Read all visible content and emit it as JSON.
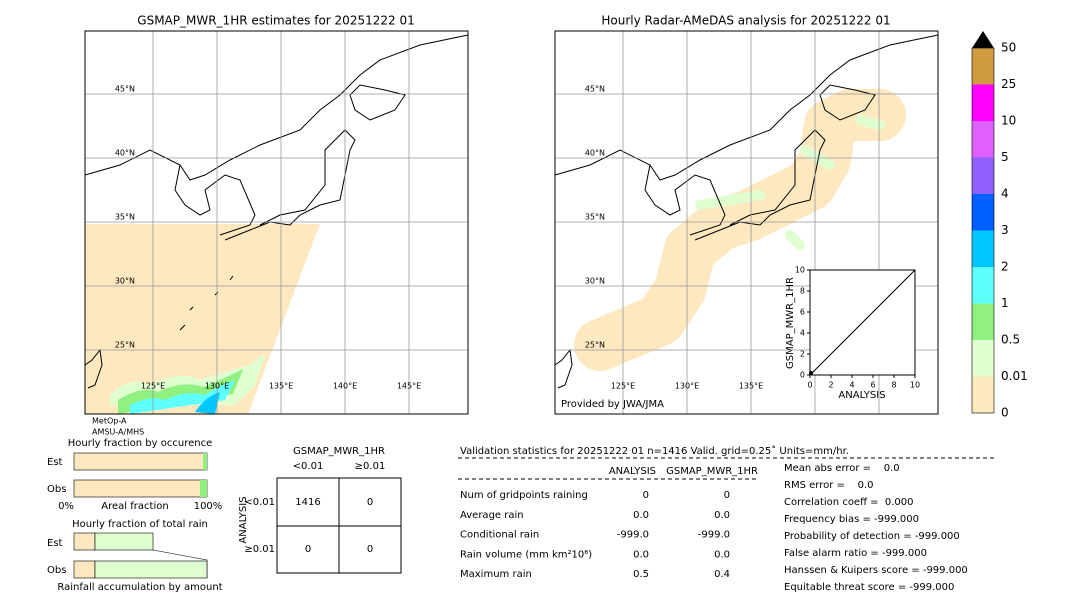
{
  "left_map": {
    "title": "GSMAP_MWR_1HR estimates for 20251222 01",
    "lat_labels": [
      "45°N",
      "40°N",
      "35°N",
      "30°N",
      "25°N"
    ],
    "lon_labels": [
      "125°E",
      "130°E",
      "135°E",
      "140°E",
      "145°E"
    ],
    "satellite": [
      "MetOp-A",
      "AMSU-A/MHS"
    ]
  },
  "right_map": {
    "title": "Hourly Radar-AMeDAS analysis for 20251222 01",
    "lat_labels": [
      "45°N",
      "40°N",
      "35°N",
      "30°N",
      "25°N"
    ],
    "lon_labels": [
      "125°E",
      "130°E",
      "135°E"
    ],
    "credit": "Provided by JWA/JMA"
  },
  "inset": {
    "ylabel": "GSMAP_MWR_1HR",
    "xlabel": "ANALYSIS",
    "xticks": [
      "0",
      "2",
      "4",
      "6",
      "8",
      "10"
    ],
    "yticks": [
      "0",
      "2",
      "4",
      "6",
      "8",
      "10"
    ]
  },
  "colorbar": {
    "labels": [
      "0",
      "0.01",
      "0.5",
      "1",
      "2",
      "3",
      "4",
      "5",
      "10",
      "25",
      "50"
    ]
  },
  "fraction_occurrence": {
    "title": "Hourly fraction by occurence",
    "rows": [
      "Est",
      "Obs"
    ],
    "axis": [
      "0%",
      "Areal fraction",
      "100%"
    ]
  },
  "fraction_rain": {
    "title": "Hourly fraction of total rain",
    "rows": [
      "Est",
      "Obs"
    ],
    "footer": "Rainfall accumulation by amount"
  },
  "contingency": {
    "title": "GSMAP_MWR_1HR",
    "columns": [
      "<0.01",
      "≥0.01"
    ],
    "row_axis": "ANALYSIS",
    "rows": [
      {
        "label": "<0.01",
        "cells": [
          "1416",
          "0"
        ]
      },
      {
        "label": "≥0.01",
        "cells": [
          "0",
          "0"
        ]
      }
    ]
  },
  "validation": {
    "header": "Validation statistics for 20251222 01  n=1416 Valid. grid=0.25˚ Units=mm/hr.",
    "columns": [
      "ANALYSIS",
      "GSMAP_MWR_1HR"
    ],
    "rows": [
      [
        "Num of gridpoints raining",
        "0",
        "0"
      ],
      [
        "Average rain",
        "0.0",
        "0.0"
      ],
      [
        "Conditional rain",
        "-999.0",
        "-999.0"
      ],
      [
        "Rain volume (mm km²10⁶)",
        "0.0",
        "0.0"
      ],
      [
        "Maximum rain",
        "0.5",
        "0.4"
      ]
    ],
    "scores": [
      "Mean abs error =    0.0",
      "RMS error =    0.0",
      "Correlation coeff =  0.000",
      "Frequency bias = -999.000",
      "Probability of detection = -999.000",
      "False alarm ratio = -999.000",
      "Hanssen & Kuipers score = -999.000",
      "Equitable threat score = -999.000"
    ]
  }
}
